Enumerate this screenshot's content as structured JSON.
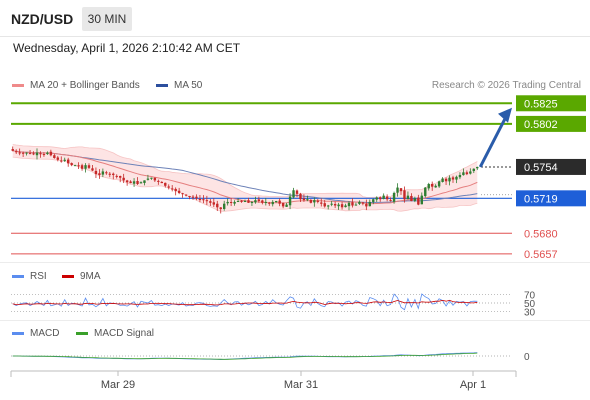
{
  "header": {
    "pair": "NZD/USD",
    "timeframe": "30 MIN",
    "datetime": "Wednesday, April 1, 2026 2:10:42 AM CET"
  },
  "legend": {
    "ma20": "MA 20 + Bollinger Bands",
    "ma50": "MA 50",
    "credit": "Research © 2026 Trading Central",
    "rsi": "RSI",
    "rsi_ma": "9MA",
    "macd": "MACD",
    "macd_signal": "MACD Signal"
  },
  "colors": {
    "up": "#2e7d32",
    "down": "#c62828",
    "ma20": "#ef9a9a",
    "ma50": "#2c4f9e",
    "band_fill": "#fde4e4",
    "resistance": "#5aa800",
    "pivot": "#1e5fd8",
    "support": "#e05050",
    "arrow": "#2a5caa",
    "rsi": "#5b8def",
    "rsi_ma": "#cc0000",
    "macd": "#5b8def",
    "macd_signal": "#3aa02a"
  },
  "chart_data": [
    {
      "type": "candlestick",
      "title": "NZD/USD 30 MIN",
      "y_range": [
        0.5648,
        0.5832
      ],
      "x_axis_ticks": [
        "Mar 29",
        "Mar 31",
        "Apr 1"
      ],
      "current_price": 0.5754,
      "levels": [
        {
          "label": "0.5825",
          "value": 0.5825,
          "kind": "resistance"
        },
        {
          "label": "0.5802",
          "value": 0.5802,
          "kind": "resistance"
        },
        {
          "label": "0.5754",
          "value": 0.5754,
          "kind": "current"
        },
        {
          "label": "0.5719",
          "value": 0.5719,
          "kind": "pivot"
        },
        {
          "label": "0.5680",
          "value": 0.568,
          "kind": "support"
        },
        {
          "label": "0.5657",
          "value": 0.5657,
          "kind": "support"
        }
      ],
      "forecast_arrow": {
        "from": 0.5754,
        "to": 0.582
      },
      "close_series": [
        0.5772,
        0.5771,
        0.577,
        0.5769,
        0.577,
        0.5769,
        0.5768,
        0.577,
        0.5769,
        0.5768,
        0.577,
        0.5767,
        0.5764,
        0.5762,
        0.576,
        0.5762,
        0.5758,
        0.5756,
        0.5756,
        0.5755,
        0.5752,
        0.5756,
        0.5753,
        0.575,
        0.5746,
        0.5745,
        0.5749,
        0.5747,
        0.5746,
        0.5745,
        0.5744,
        0.5742,
        0.5739,
        0.5737,
        0.5736,
        0.5738,
        0.5735,
        0.5737,
        0.5739,
        0.5741,
        0.5742,
        0.5739,
        0.5738,
        0.5736,
        0.5733,
        0.5731,
        0.5729,
        0.5727,
        0.5725,
        0.5724,
        0.5722,
        0.5721,
        0.572,
        0.5719,
        0.5718,
        0.5717,
        0.5716,
        0.5714,
        0.5712,
        0.5709,
        0.5707,
        0.5713,
        0.5715,
        0.5714,
        0.5715,
        0.5716,
        0.5715,
        0.5716,
        0.5714,
        0.5715,
        0.5717,
        0.5716,
        0.5714,
        0.5715,
        0.5713,
        0.5715,
        0.5716,
        0.5713,
        0.571,
        0.5712,
        0.5721,
        0.5728,
        0.5724,
        0.5718,
        0.5717,
        0.5718,
        0.5714,
        0.5717,
        0.5715,
        0.5713,
        0.571,
        0.5711,
        0.5713,
        0.5711,
        0.5712,
        0.5709,
        0.5711,
        0.5714,
        0.5711,
        0.5712,
        0.5715,
        0.5713,
        0.571,
        0.5715,
        0.5718,
        0.572,
        0.5718,
        0.5722,
        0.5718,
        0.5716,
        0.5725,
        0.5731,
        0.5727,
        0.5718,
        0.5722,
        0.5716,
        0.5719,
        0.5712,
        0.5722,
        0.5731,
        0.5735,
        0.5732,
        0.5733,
        0.5738,
        0.5741,
        0.5738,
        0.5742,
        0.574,
        0.5743,
        0.5745,
        0.5748,
        0.5746,
        0.5749,
        0.5752,
        0.5754
      ]
    },
    {
      "type": "line",
      "title": "RSI",
      "y_ticks": [
        70,
        50,
        30
      ],
      "series": [
        {
          "name": "RSI"
        },
        {
          "name": "9MA"
        }
      ]
    },
    {
      "type": "line",
      "title": "MACD",
      "y_ticks": [
        0
      ],
      "series": [
        {
          "name": "MACD"
        },
        {
          "name": "MACD Signal"
        }
      ]
    }
  ]
}
